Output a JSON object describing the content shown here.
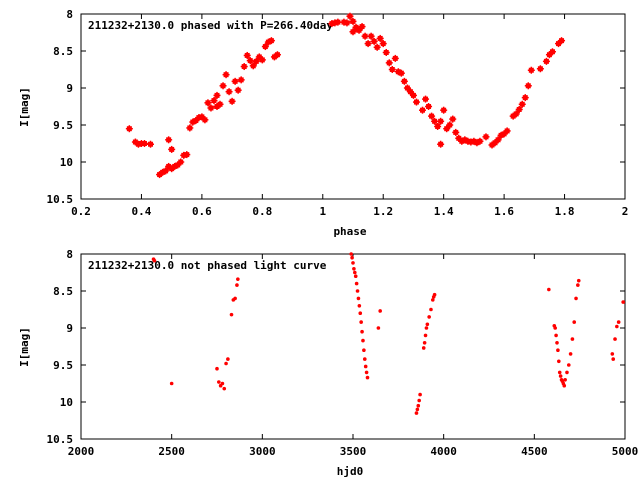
{
  "chart_data": [
    {
      "type": "scatter",
      "title": "211232+2130.0 phased with P=266.40day",
      "xlabel": "phase",
      "ylabel": "I[mag]",
      "xlim": [
        0.2,
        2.0
      ],
      "ylim": [
        10.5,
        8.0
      ],
      "y_inverted": true,
      "xticks": [
        "0.2",
        "0.4",
        "0.6",
        "0.8",
        "1",
        "1.2",
        "1.4",
        "1.6",
        "1.8",
        "2"
      ],
      "yticks": [
        "8",
        "8.5",
        "9",
        "9.5",
        "10",
        "10.5"
      ],
      "grid": false,
      "color": "#ff0000",
      "marker": "star",
      "points": [
        [
          0.36,
          9.55
        ],
        [
          0.38,
          9.73
        ],
        [
          0.39,
          9.76
        ],
        [
          0.4,
          9.75
        ],
        [
          0.41,
          9.75
        ],
        [
          0.43,
          9.76
        ],
        [
          0.46,
          10.17
        ],
        [
          0.47,
          10.14
        ],
        [
          0.48,
          10.12
        ],
        [
          0.49,
          10.06
        ],
        [
          0.49,
          9.7
        ],
        [
          0.5,
          9.83
        ],
        [
          0.5,
          10.09
        ],
        [
          0.51,
          10.06
        ],
        [
          0.52,
          10.04
        ],
        [
          0.53,
          10.0
        ],
        [
          0.54,
          9.91
        ],
        [
          0.55,
          9.9
        ],
        [
          0.56,
          9.54
        ],
        [
          0.57,
          9.46
        ],
        [
          0.58,
          9.44
        ],
        [
          0.59,
          9.4
        ],
        [
          0.6,
          9.39
        ],
        [
          0.61,
          9.43
        ],
        [
          0.62,
          9.2
        ],
        [
          0.63,
          9.27
        ],
        [
          0.64,
          9.17
        ],
        [
          0.65,
          9.1
        ],
        [
          0.65,
          9.25
        ],
        [
          0.66,
          9.22
        ],
        [
          0.67,
          8.97
        ],
        [
          0.68,
          8.82
        ],
        [
          0.69,
          9.05
        ],
        [
          0.7,
          9.18
        ],
        [
          0.71,
          8.91
        ],
        [
          0.72,
          9.03
        ],
        [
          0.73,
          8.89
        ],
        [
          0.74,
          8.71
        ],
        [
          0.75,
          8.56
        ],
        [
          0.76,
          8.63
        ],
        [
          0.77,
          8.7
        ],
        [
          0.78,
          8.64
        ],
        [
          0.79,
          8.58
        ],
        [
          0.8,
          8.62
        ],
        [
          0.81,
          8.44
        ],
        [
          0.82,
          8.38
        ],
        [
          0.83,
          8.36
        ],
        [
          0.84,
          8.58
        ],
        [
          0.85,
          8.55
        ],
        [
          1.03,
          8.13
        ],
        [
          1.04,
          8.12
        ],
        [
          1.05,
          8.11
        ],
        [
          1.07,
          8.11
        ],
        [
          1.08,
          8.12
        ],
        [
          1.09,
          8.03
        ],
        [
          1.1,
          8.1
        ],
        [
          1.1,
          8.24
        ],
        [
          1.11,
          8.18
        ],
        [
          1.12,
          8.22
        ],
        [
          1.13,
          8.17
        ],
        [
          1.14,
          8.3
        ],
        [
          1.15,
          8.4
        ],
        [
          1.16,
          8.3
        ],
        [
          1.17,
          8.37
        ],
        [
          1.18,
          8.45
        ],
        [
          1.19,
          8.33
        ],
        [
          1.2,
          8.4
        ],
        [
          1.21,
          8.52
        ],
        [
          1.22,
          8.66
        ],
        [
          1.23,
          8.75
        ],
        [
          1.24,
          8.6
        ],
        [
          1.25,
          8.78
        ],
        [
          1.26,
          8.8
        ],
        [
          1.27,
          8.91
        ],
        [
          1.28,
          9.0
        ],
        [
          1.29,
          9.05
        ],
        [
          1.3,
          9.1
        ],
        [
          1.31,
          9.19
        ],
        [
          1.33,
          9.3
        ],
        [
          1.34,
          9.15
        ],
        [
          1.35,
          9.25
        ],
        [
          1.36,
          9.38
        ],
        [
          1.37,
          9.45
        ],
        [
          1.38,
          9.52
        ],
        [
          1.39,
          9.45
        ],
        [
          1.39,
          9.76
        ],
        [
          1.4,
          9.3
        ],
        [
          1.41,
          9.55
        ],
        [
          1.42,
          9.5
        ],
        [
          1.43,
          9.42
        ],
        [
          1.44,
          9.6
        ],
        [
          1.45,
          9.68
        ],
        [
          1.46,
          9.72
        ],
        [
          1.47,
          9.7
        ],
        [
          1.48,
          9.72
        ],
        [
          1.49,
          9.73
        ],
        [
          1.5,
          9.72
        ],
        [
          1.51,
          9.74
        ],
        [
          1.52,
          9.72
        ],
        [
          1.54,
          9.66
        ],
        [
          1.56,
          9.77
        ],
        [
          1.57,
          9.74
        ],
        [
          1.58,
          9.7
        ],
        [
          1.59,
          9.64
        ],
        [
          1.6,
          9.62
        ],
        [
          1.61,
          9.58
        ],
        [
          1.63,
          9.38
        ],
        [
          1.64,
          9.35
        ],
        [
          1.65,
          9.29
        ],
        [
          1.66,
          9.22
        ],
        [
          1.67,
          9.13
        ],
        [
          1.68,
          8.97
        ],
        [
          1.69,
          8.76
        ],
        [
          1.72,
          8.74
        ],
        [
          1.74,
          8.64
        ],
        [
          1.75,
          8.55
        ],
        [
          1.76,
          8.51
        ],
        [
          1.78,
          8.4
        ],
        [
          1.79,
          8.36
        ]
      ]
    },
    {
      "type": "scatter",
      "title": "211232+2130.0 not phased light curve",
      "xlabel": "hjd0",
      "ylabel": "I[mag]",
      "xlim": [
        2000,
        5000
      ],
      "ylim": [
        10.5,
        8.0
      ],
      "y_inverted": true,
      "xticks": [
        "2000",
        "2500",
        "3000",
        "3500",
        "4000",
        "4500",
        "5000"
      ],
      "yticks": [
        "8",
        "8.5",
        "9",
        "9.5",
        "10",
        "10.5"
      ],
      "grid": false,
      "color": "#ff0000",
      "marker": "dot",
      "points": [
        [
          2400,
          8.07
        ],
        [
          2405,
          8.09
        ],
        [
          2500,
          9.75
        ],
        [
          2750,
          9.55
        ],
        [
          2760,
          9.73
        ],
        [
          2770,
          9.78
        ],
        [
          2780,
          9.75
        ],
        [
          2790,
          9.82
        ],
        [
          2800,
          9.48
        ],
        [
          2810,
          9.42
        ],
        [
          2830,
          8.82
        ],
        [
          2840,
          8.62
        ],
        [
          2850,
          8.6
        ],
        [
          2860,
          8.42
        ],
        [
          2865,
          8.34
        ],
        [
          3490,
          8.0
        ],
        [
          3495,
          8.05
        ],
        [
          3500,
          8.12
        ],
        [
          3505,
          8.2
        ],
        [
          3510,
          8.25
        ],
        [
          3515,
          8.3
        ],
        [
          3520,
          8.4
        ],
        [
          3525,
          8.5
        ],
        [
          3530,
          8.6
        ],
        [
          3535,
          8.7
        ],
        [
          3540,
          8.8
        ],
        [
          3545,
          8.92
        ],
        [
          3550,
          9.05
        ],
        [
          3555,
          9.17
        ],
        [
          3560,
          9.3
        ],
        [
          3565,
          9.42
        ],
        [
          3570,
          9.52
        ],
        [
          3575,
          9.6
        ],
        [
          3580,
          9.67
        ],
        [
          3640,
          9.0
        ],
        [
          3650,
          8.77
        ],
        [
          3850,
          10.15
        ],
        [
          3855,
          10.1
        ],
        [
          3860,
          10.05
        ],
        [
          3865,
          9.98
        ],
        [
          3870,
          9.9
        ],
        [
          3890,
          9.27
        ],
        [
          3895,
          9.2
        ],
        [
          3900,
          9.1
        ],
        [
          3905,
          9.0
        ],
        [
          3910,
          8.95
        ],
        [
          3920,
          8.85
        ],
        [
          3930,
          8.75
        ],
        [
          3940,
          8.62
        ],
        [
          3945,
          8.58
        ],
        [
          3950,
          8.55
        ],
        [
          4580,
          8.48
        ],
        [
          4610,
          8.97
        ],
        [
          4615,
          9.0
        ],
        [
          4620,
          9.1
        ],
        [
          4625,
          9.2
        ],
        [
          4630,
          9.3
        ],
        [
          4635,
          9.45
        ],
        [
          4640,
          9.6
        ],
        [
          4645,
          9.65
        ],
        [
          4650,
          9.7
        ],
        [
          4655,
          9.72
        ],
        [
          4660,
          9.75
        ],
        [
          4665,
          9.78
        ],
        [
          4670,
          9.7
        ],
        [
          4680,
          9.6
        ],
        [
          4690,
          9.5
        ],
        [
          4700,
          9.35
        ],
        [
          4710,
          9.15
        ],
        [
          4720,
          8.92
        ],
        [
          4730,
          8.6
        ],
        [
          4740,
          8.42
        ],
        [
          4745,
          8.36
        ],
        [
          4930,
          9.35
        ],
        [
          4935,
          9.42
        ],
        [
          4945,
          9.15
        ],
        [
          4955,
          8.98
        ],
        [
          4965,
          8.92
        ],
        [
          4990,
          8.65
        ]
      ]
    }
  ]
}
